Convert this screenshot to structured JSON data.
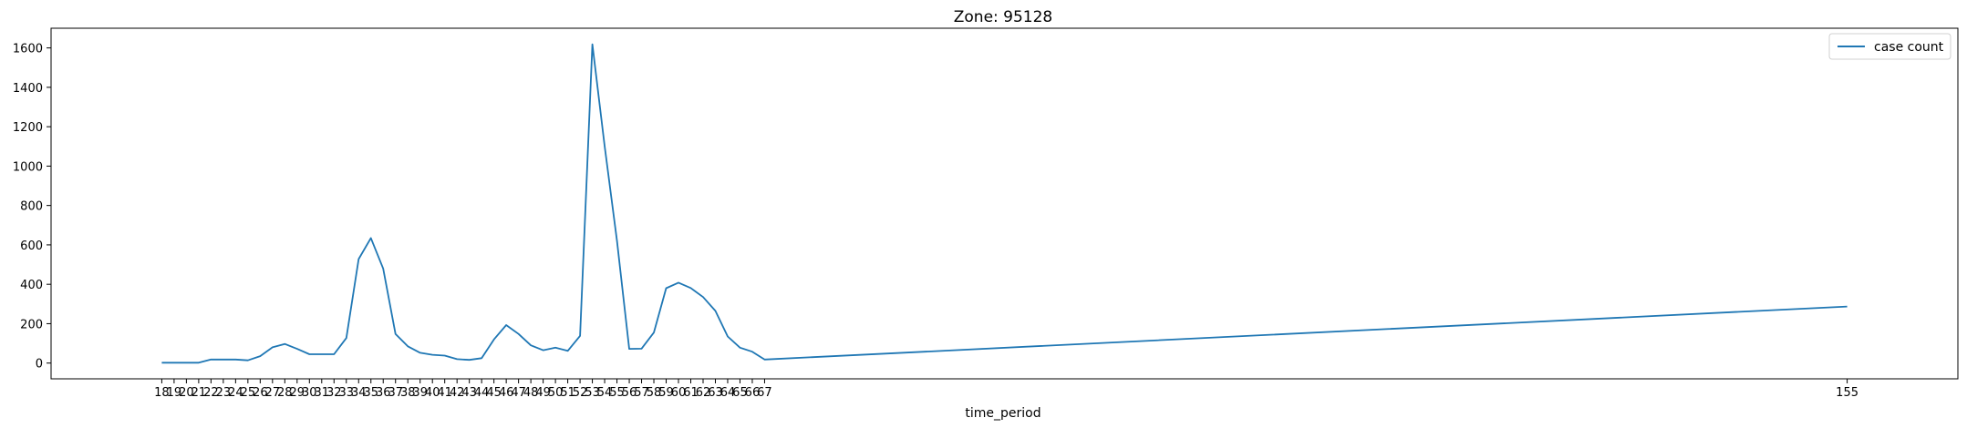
{
  "chart_data": {
    "type": "line",
    "title": "Zone: 95128",
    "xlabel": "time_period",
    "ylabel": "",
    "x": [
      18,
      19,
      20,
      21,
      22,
      23,
      24,
      25,
      26,
      27,
      28,
      29,
      30,
      31,
      32,
      33,
      34,
      35,
      36,
      37,
      38,
      39,
      40,
      41,
      42,
      43,
      44,
      45,
      46,
      47,
      48,
      49,
      50,
      51,
      52,
      53,
      54,
      55,
      56,
      57,
      58,
      59,
      60,
      61,
      62,
      63,
      64,
      65,
      66,
      67,
      155
    ],
    "series": [
      {
        "name": "case count",
        "color": "#1f77b4",
        "values": [
          2,
          2,
          2,
          2,
          18,
          18,
          18,
          14,
          35,
          80,
          97,
          72,
          45,
          45,
          45,
          127,
          528,
          635,
          480,
          148,
          85,
          52,
          42,
          38,
          20,
          16,
          25,
          120,
          193,
          148,
          90,
          65,
          78,
          62,
          138,
          1618,
          1100,
          620,
          72,
          73,
          155,
          380,
          408,
          381,
          335,
          265,
          135,
          78,
          58,
          18,
          287
        ]
      }
    ],
    "xticks": [
      "18",
      "19",
      "20",
      "21",
      "22",
      "23",
      "24",
      "25",
      "26",
      "27",
      "28",
      "29",
      "30",
      "31",
      "32",
      "33",
      "34",
      "35",
      "36",
      "37",
      "38",
      "39",
      "40",
      "41",
      "42",
      "43",
      "44",
      "45",
      "46",
      "47",
      "48",
      "49",
      "50",
      "51",
      "52",
      "53",
      "54",
      "55",
      "56",
      "57",
      "58",
      "59",
      "60",
      "61",
      "62",
      "63",
      "64",
      "65",
      "66",
      "67",
      "155"
    ],
    "yticks": [
      0,
      200,
      400,
      600,
      800,
      1000,
      1200,
      1400,
      1600
    ],
    "xlim": [
      9,
      164
    ],
    "ylim": [
      -80,
      1700
    ],
    "grid": false,
    "legend_position": "top-right"
  }
}
